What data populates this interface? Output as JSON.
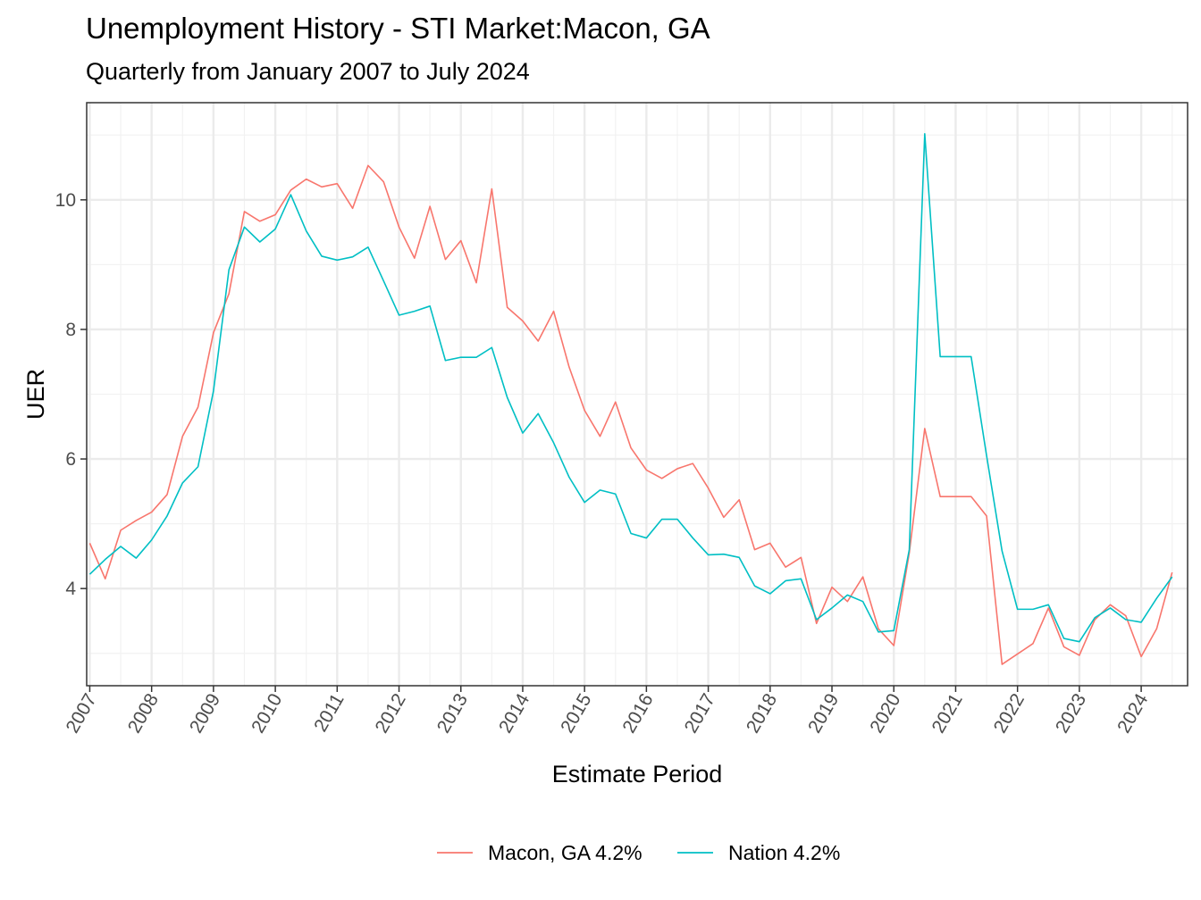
{
  "chart_data": {
    "type": "line",
    "title": "Unemployment History - STI Market:Macon, GA",
    "subtitle": "Quarterly from January 2007 to July 2024",
    "xlabel": "Estimate Period",
    "ylabel": "UER",
    "xlim": [
      2006.95,
      2024.75
    ],
    "ylim": [
      2.5,
      11.5
    ],
    "x_ticks": [
      "2007",
      "2008",
      "2009",
      "2010",
      "2011",
      "2012",
      "2013",
      "2014",
      "2015",
      "2016",
      "2017",
      "2018",
      "2019",
      "2020",
      "2021",
      "2022",
      "2023",
      "2024"
    ],
    "y_ticks": [
      4,
      6,
      8,
      10
    ],
    "grid": true,
    "legend_position": "bottom",
    "x": [
      2007.0,
      2007.25,
      2007.5,
      2007.75,
      2008.0,
      2008.25,
      2008.5,
      2008.75,
      2009.0,
      2009.25,
      2009.5,
      2009.75,
      2010.0,
      2010.25,
      2010.5,
      2010.75,
      2011.0,
      2011.25,
      2011.5,
      2011.75,
      2012.0,
      2012.25,
      2012.5,
      2012.75,
      2013.0,
      2013.25,
      2013.5,
      2013.75,
      2014.0,
      2014.25,
      2014.5,
      2014.75,
      2015.0,
      2015.25,
      2015.5,
      2015.75,
      2016.0,
      2016.25,
      2016.5,
      2016.75,
      2017.0,
      2017.25,
      2017.5,
      2017.75,
      2018.0,
      2018.25,
      2018.5,
      2018.75,
      2019.0,
      2019.25,
      2019.5,
      2019.75,
      2020.0,
      2020.25,
      2020.5,
      2020.75,
      2021.0,
      2021.25,
      2021.5,
      2021.75,
      2022.0,
      2022.25,
      2022.5,
      2022.75,
      2023.0,
      2023.25,
      2023.5,
      2023.75,
      2024.0,
      2024.25,
      2024.5
    ],
    "series": [
      {
        "name": "Macon, GA 4.2%",
        "color": "#F8766D",
        "values": [
          4.7,
          4.15,
          4.9,
          5.05,
          5.18,
          5.45,
          6.35,
          6.8,
          7.95,
          8.55,
          9.82,
          9.67,
          9.77,
          10.15,
          10.32,
          10.2,
          10.25,
          9.87,
          10.53,
          10.28,
          9.58,
          9.1,
          9.9,
          9.08,
          9.37,
          8.72,
          10.17,
          8.34,
          8.13,
          7.82,
          8.28,
          7.42,
          6.75,
          6.35,
          6.88,
          6.17,
          5.83,
          5.7,
          5.85,
          5.93,
          5.55,
          5.1,
          5.37,
          4.6,
          4.7,
          4.33,
          4.48,
          3.46,
          4.02,
          3.8,
          4.18,
          3.38,
          3.12,
          4.55,
          6.47,
          5.42,
          5.42,
          5.42,
          5.12,
          2.83,
          2.99,
          3.15,
          3.7,
          3.1,
          2.97,
          3.52,
          3.75,
          3.58,
          2.95,
          3.38,
          4.25
        ]
      },
      {
        "name": "Nation 4.2%",
        "color": "#00BFC4",
        "values": [
          4.22,
          4.45,
          4.65,
          4.47,
          4.75,
          5.12,
          5.63,
          5.88,
          7.05,
          8.92,
          9.58,
          9.35,
          9.55,
          10.08,
          9.52,
          9.13,
          9.07,
          9.12,
          9.27,
          8.75,
          8.22,
          8.28,
          8.36,
          7.52,
          7.57,
          7.57,
          7.72,
          6.95,
          6.4,
          6.7,
          6.25,
          5.72,
          5.33,
          5.52,
          5.46,
          4.85,
          4.78,
          5.07,
          5.07,
          4.78,
          4.52,
          4.53,
          4.48,
          4.04,
          3.92,
          4.12,
          4.15,
          3.52,
          3.7,
          3.9,
          3.8,
          3.33,
          3.35,
          4.6,
          11.02,
          7.58,
          7.58,
          7.58,
          6.05,
          4.58,
          3.68,
          3.68,
          3.75,
          3.23,
          3.18,
          3.55,
          3.7,
          3.52,
          3.48,
          3.85,
          4.18
        ]
      }
    ]
  }
}
